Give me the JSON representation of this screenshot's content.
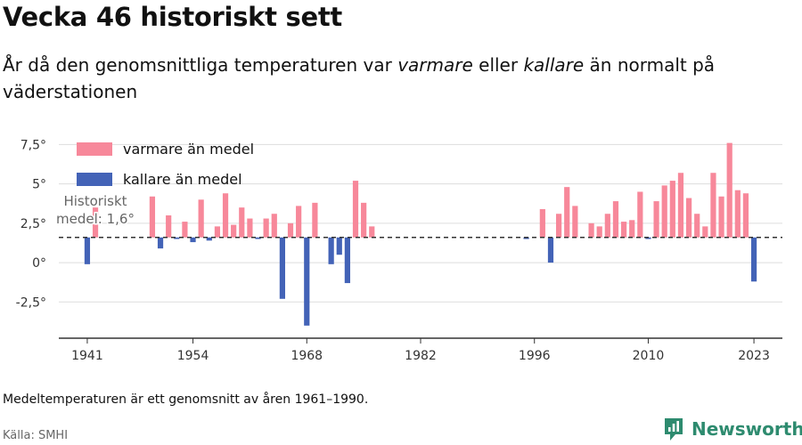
{
  "page": {
    "title": "Vecka 46 historiskt sett",
    "subtitle_prefix": "År då den genomsnittliga temperaturen var ",
    "subtitle_warm": "varmare",
    "subtitle_middle": " eller ",
    "subtitle_cold": "kallare",
    "subtitle_suffix": " än normalt på väderstationen",
    "footnote": "Medeltemperaturen är ett genomsnitt av åren 1961–1990.",
    "source": "Källa: SMHI",
    "brand": "Newsworthy",
    "brand_icon": "newsworthy-logo-icon"
  },
  "colors": {
    "warm": "#f7889a",
    "cold": "#4363b7",
    "baseline": "#333333",
    "grid": "#dddddd",
    "axis": "#333333",
    "annotation": "#666666",
    "brand": "#2e8b6f"
  },
  "chart_data": {
    "type": "bar",
    "baseline": 1.6,
    "baseline_label_line1": "Historiskt",
    "baseline_label_line2": "medel: 1,6°",
    "ylim": [
      -4.8,
      8.2
    ],
    "yticks": [
      {
        "value": -2.5,
        "label": "-2,5°"
      },
      {
        "value": 0,
        "label": "0°"
      },
      {
        "value": 2.5,
        "label": "2,5°"
      },
      {
        "value": 5,
        "label": "5°"
      },
      {
        "value": 7.5,
        "label": "7,5°"
      }
    ],
    "xlim": [
      1937.5,
      2026.5
    ],
    "xticks": [
      1941,
      1954,
      1968,
      1982,
      1996,
      2010,
      2023
    ],
    "legend": [
      {
        "key": "warm",
        "label": "varmare än medel"
      },
      {
        "key": "cold",
        "label": "kallare än medel"
      }
    ],
    "legend_position": "top-left",
    "series": [
      {
        "x": 1941,
        "y": -0.1
      },
      {
        "x": 1942,
        "y": 3.5
      },
      {
        "x": 1949,
        "y": 4.2
      },
      {
        "x": 1950,
        "y": 0.9
      },
      {
        "x": 1951,
        "y": 3.0
      },
      {
        "x": 1952,
        "y": 1.5
      },
      {
        "x": 1953,
        "y": 2.6
      },
      {
        "x": 1954,
        "y": 1.3
      },
      {
        "x": 1955,
        "y": 4.0
      },
      {
        "x": 1956,
        "y": 1.4
      },
      {
        "x": 1957,
        "y": 2.3
      },
      {
        "x": 1958,
        "y": 4.4
      },
      {
        "x": 1959,
        "y": 2.4
      },
      {
        "x": 1960,
        "y": 3.5
      },
      {
        "x": 1961,
        "y": 2.8
      },
      {
        "x": 1962,
        "y": 1.5
      },
      {
        "x": 1963,
        "y": 2.8
      },
      {
        "x": 1964,
        "y": 3.1
      },
      {
        "x": 1965,
        "y": -2.3
      },
      {
        "x": 1966,
        "y": 2.5
      },
      {
        "x": 1967,
        "y": 3.6
      },
      {
        "x": 1968,
        "y": -4.0
      },
      {
        "x": 1969,
        "y": 3.8
      },
      {
        "x": 1971,
        "y": -0.1
      },
      {
        "x": 1972,
        "y": 0.5
      },
      {
        "x": 1973,
        "y": -1.3
      },
      {
        "x": 1974,
        "y": 5.2
      },
      {
        "x": 1975,
        "y": 3.8
      },
      {
        "x": 1976,
        "y": 2.3
      },
      {
        "x": 1995,
        "y": 1.5
      },
      {
        "x": 1997,
        "y": 3.4
      },
      {
        "x": 1998,
        "y": 0.0
      },
      {
        "x": 1999,
        "y": 3.1
      },
      {
        "x": 2000,
        "y": 4.8
      },
      {
        "x": 2001,
        "y": 3.6
      },
      {
        "x": 2003,
        "y": 2.5
      },
      {
        "x": 2004,
        "y": 2.3
      },
      {
        "x": 2005,
        "y": 3.1
      },
      {
        "x": 2006,
        "y": 3.9
      },
      {
        "x": 2007,
        "y": 2.6
      },
      {
        "x": 2008,
        "y": 2.7
      },
      {
        "x": 2009,
        "y": 4.5
      },
      {
        "x": 2010,
        "y": 1.5
      },
      {
        "x": 2011,
        "y": 3.9
      },
      {
        "x": 2012,
        "y": 4.9
      },
      {
        "x": 2013,
        "y": 5.2
      },
      {
        "x": 2014,
        "y": 5.7
      },
      {
        "x": 2015,
        "y": 4.1
      },
      {
        "x": 2016,
        "y": 3.1
      },
      {
        "x": 2017,
        "y": 2.3
      },
      {
        "x": 2018,
        "y": 5.7
      },
      {
        "x": 2019,
        "y": 4.2
      },
      {
        "x": 2020,
        "y": 7.6
      },
      {
        "x": 2021,
        "y": 4.6
      },
      {
        "x": 2022,
        "y": 4.4
      },
      {
        "x": 2023,
        "y": -1.2
      }
    ]
  }
}
